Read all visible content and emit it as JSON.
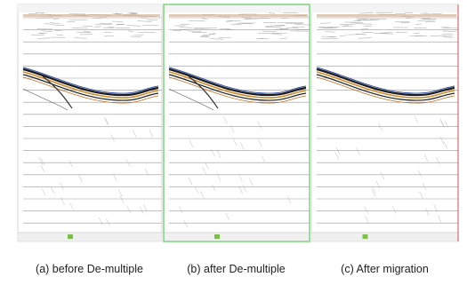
{
  "panels": [
    {
      "caption": "(a) before De-multiple"
    },
    {
      "caption": "(b) after De-multiple"
    },
    {
      "caption": "(c) After migration"
    }
  ]
}
